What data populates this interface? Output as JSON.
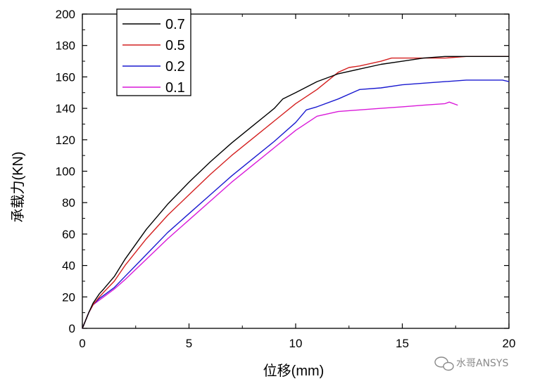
{
  "chart_data": {
    "type": "line",
    "xlabel": "位移(mm)",
    "ylabel": "承载力(KN)",
    "xlim": [
      0,
      20
    ],
    "ylim": [
      0,
      200
    ],
    "x_ticks": [
      "0",
      "5",
      "10",
      "15",
      "20"
    ],
    "y_ticks": [
      "0",
      "20",
      "40",
      "60",
      "80",
      "100",
      "120",
      "140",
      "160",
      "180",
      "200"
    ],
    "grid": false,
    "legend_position": "top-left",
    "series": [
      {
        "name": "0.7",
        "color": "#000000",
        "x": [
          0,
          0.3,
          0.5,
          0.8,
          1.0,
          1.5,
          2.0,
          3.0,
          4.0,
          5.0,
          6.0,
          7.0,
          8.0,
          9.0,
          9.4,
          10.0,
          11.0,
          12.0,
          13.0,
          14.0,
          15.0,
          16.0,
          17.0,
          18.0,
          19.0,
          20.0
        ],
        "y": [
          0,
          10,
          16,
          22,
          25,
          33,
          44,
          63,
          79,
          93,
          106,
          118,
          129,
          140,
          146,
          150,
          157,
          162,
          165,
          168,
          170,
          172,
          173,
          173,
          173,
          173
        ]
      },
      {
        "name": "0.5",
        "color": "#d42020",
        "x": [
          0,
          0.3,
          0.5,
          0.8,
          1.0,
          1.5,
          2.0,
          3.0,
          4.0,
          5.0,
          6.0,
          7.0,
          8.0,
          9.0,
          10.0,
          11.0,
          12.0,
          12.5,
          13.0,
          14.0,
          14.5,
          15.0,
          16.0,
          17.0,
          18.0,
          19.0,
          20.0
        ],
        "y": [
          0,
          10,
          15,
          20,
          23,
          30,
          40,
          57,
          72,
          85,
          98,
          110,
          121,
          132,
          143,
          152,
          163,
          166,
          167,
          170,
          172,
          172,
          172,
          172,
          173,
          173,
          173
        ]
      },
      {
        "name": "0.2",
        "color": "#1a1ad0",
        "x": [
          0,
          0.3,
          0.5,
          0.8,
          1.0,
          1.5,
          2.0,
          3.0,
          4.0,
          5.0,
          6.0,
          7.0,
          8.0,
          9.0,
          10.0,
          10.5,
          11.0,
          12.0,
          13.0,
          14.0,
          15.0,
          16.0,
          17.0,
          18.0,
          19.0,
          19.7,
          20.0
        ],
        "y": [
          0,
          10,
          15,
          19,
          21,
          26,
          33,
          47,
          61,
          73,
          85,
          97,
          108,
          119,
          131,
          139,
          141,
          146,
          152,
          153,
          155,
          156,
          157,
          158,
          158,
          158,
          157
        ]
      },
      {
        "name": "0.1",
        "color": "#d919d9",
        "x": [
          0,
          0.3,
          0.5,
          0.8,
          1.0,
          1.5,
          2.0,
          3.0,
          4.0,
          5.0,
          6.0,
          7.0,
          8.0,
          9.0,
          10.0,
          11.0,
          12.0,
          13.0,
          14.0,
          15.0,
          16.0,
          17.0,
          17.2,
          17.6
        ],
        "y": [
          0,
          10,
          15,
          18,
          20,
          25,
          31,
          44,
          57,
          69,
          81,
          93,
          104,
          115,
          126,
          135,
          138,
          139,
          140,
          141,
          142,
          143,
          144,
          142
        ]
      }
    ]
  },
  "watermark": {
    "text": "水哥ANSYS",
    "icon": "wechat-bubble-icon"
  }
}
